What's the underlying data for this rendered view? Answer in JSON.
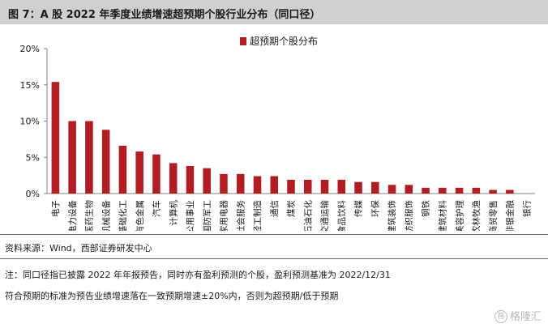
{
  "header": {
    "title": "图 7：A 股 2022 年季度业绩增速超预期个股行业分布（同口径）"
  },
  "colors": {
    "bar": "#b01e23",
    "header_bg": "#cfd0d2",
    "axis": "#808080"
  },
  "chart_data": {
    "type": "bar",
    "title": "",
    "xlabel": "",
    "ylabel": "",
    "legend": "top-right",
    "ylim": [
      0,
      20
    ],
    "yticks": [
      "0%",
      "5%",
      "10%",
      "15%",
      "20%"
    ],
    "categories": [
      "电子",
      "电力设备",
      "医药生物",
      "机械设备",
      "基础化工",
      "有色金属",
      "汽车",
      "计算机",
      "公用事业",
      "国防军工",
      "家用电器",
      "社会服务",
      "轻工制造",
      "通信",
      "煤炭",
      "石油石化",
      "交通运输",
      "食品饮料",
      "传媒",
      "环保",
      "建筑装饰",
      "纺织服饰",
      "钢铁",
      "建筑材料",
      "美容护理",
      "农林牧渔",
      "商贸零售",
      "非银金融",
      "银行"
    ],
    "series": [
      {
        "name": "超预期个股分布",
        "values": [
          15.4,
          10.0,
          10.0,
          8.8,
          6.6,
          5.8,
          5.4,
          4.2,
          3.8,
          3.5,
          2.7,
          2.7,
          2.4,
          2.4,
          1.9,
          1.9,
          1.9,
          1.9,
          1.6,
          1.6,
          1.2,
          1.2,
          0.8,
          0.8,
          0.8,
          0.8,
          0.5,
          0.5,
          0.0
        ]
      }
    ]
  },
  "footer": {
    "source": "资料来源：Wind，西部证券研发中心",
    "note1": "注：同口径指已披露 2022 年年报预告，同时亦有盈利预测的个股，盈利预测基准为 2022/12/31",
    "note2": "符合预期的标准为预告业绩增速落在一致预期增速±20%内，否则为超预期/低于预期"
  },
  "watermark": {
    "text": "格隆汇",
    "icon": "gelonghui-logo-icon"
  }
}
